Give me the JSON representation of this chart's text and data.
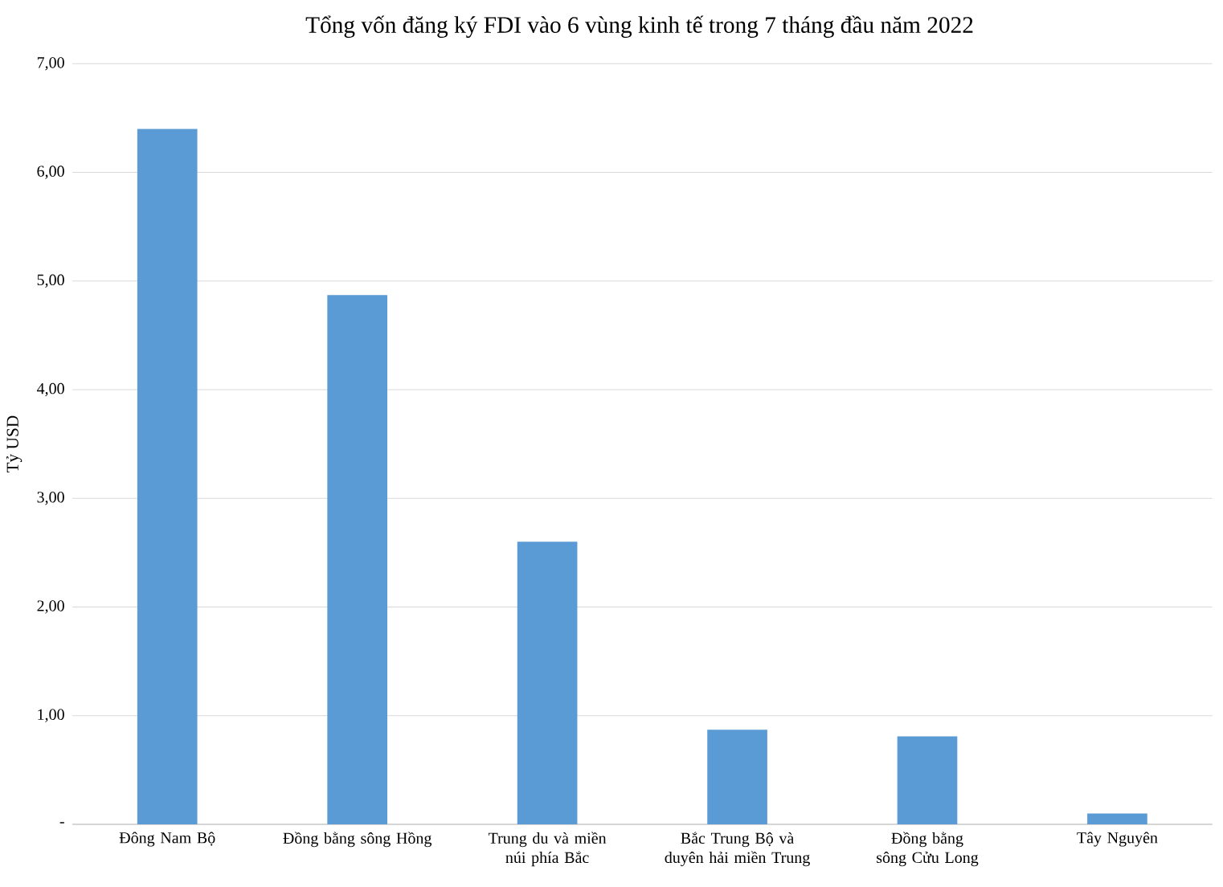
{
  "chart_data": {
    "type": "bar",
    "title": "Tổng vốn đăng ký FDI vào 6 vùng kinh tế trong 7 tháng đầu năm 2022",
    "ylabel": "Tỷ USD",
    "categories": [
      "Đông Nam Bộ",
      "Đồng bằng sông Hồng",
      "Trung du và miền núi phía Bắc",
      "Bắc Trung Bộ và duyên hải miền Trung",
      "Đồng bằng sông Cửu Long",
      "Tây Nguyên"
    ],
    "values": [
      6.4,
      4.87,
      2.6,
      0.87,
      0.81,
      0.1
    ],
    "color": "#5b9bd5",
    "ylim": [
      0,
      7
    ],
    "yticks": [
      {
        "value": 0,
        "label": "-"
      },
      {
        "value": 1,
        "label": "1,00"
      },
      {
        "value": 2,
        "label": "2,00"
      },
      {
        "value": 3,
        "label": "3,00"
      },
      {
        "value": 4,
        "label": "4,00"
      },
      {
        "value": 5,
        "label": "5,00"
      },
      {
        "value": 6,
        "label": "6,00"
      },
      {
        "value": 7,
        "label": "7,00"
      }
    ],
    "grid": "y"
  }
}
